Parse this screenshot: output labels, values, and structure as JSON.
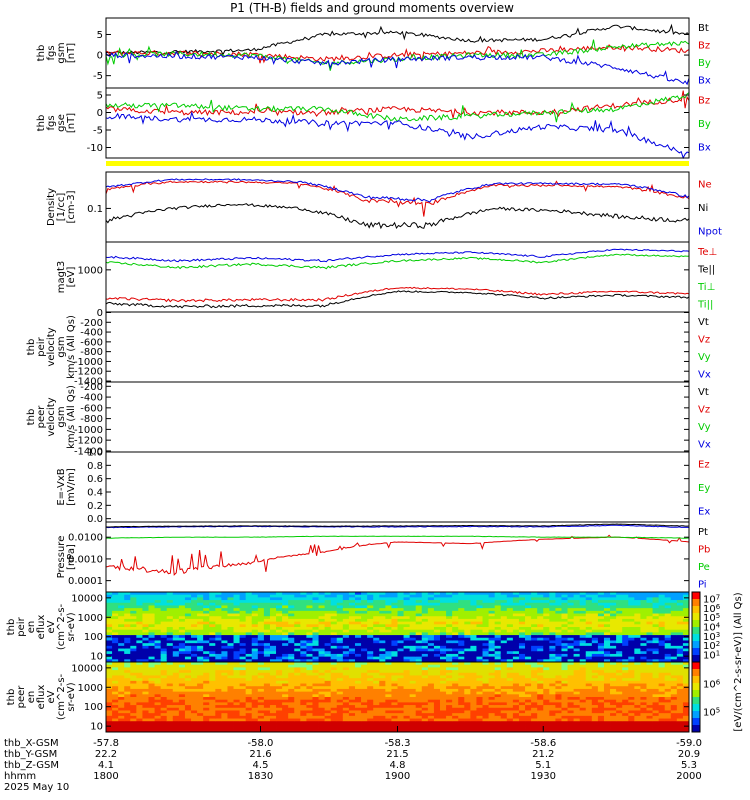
{
  "title": "P1 (TH-B) fields and ground moments overview",
  "colors": {
    "black": "#000000",
    "red": "#e00000",
    "green": "#00cc00",
    "blue": "#0000e0",
    "yellow": "#ffff00"
  },
  "panels": [
    {
      "id": "fgs-bt",
      "ylabel": [
        "thb",
        "fgs",
        "gsm",
        "[nT]"
      ],
      "ticks": [
        {
          "v": 5,
          "t": "5"
        },
        {
          "v": 0,
          "t": "0"
        },
        {
          "v": -5,
          "t": "-5"
        }
      ],
      "legend": [
        {
          "text": "Bt",
          "color": "black"
        },
        {
          "text": "Bz",
          "color": "red"
        },
        {
          "text": "By",
          "color": "green"
        },
        {
          "text": "Bx",
          "color": "blue"
        }
      ]
    },
    {
      "id": "fgs-b",
      "ylabel": [
        "thb",
        "fgs",
        "gse",
        "[nT]"
      ],
      "ticks": [
        {
          "v": 5,
          "t": "5"
        },
        {
          "v": 0,
          "t": "0"
        },
        {
          "v": -5,
          "t": "-5"
        },
        {
          "v": -10,
          "t": "-10"
        }
      ],
      "legend": [
        {
          "text": "Bz",
          "color": "red"
        },
        {
          "text": "By",
          "color": "green"
        },
        {
          "text": "Bx",
          "color": "blue"
        }
      ]
    },
    {
      "id": "density",
      "ylabel": [
        "Density",
        "[1/cc]",
        "[cm-3]"
      ],
      "ticks": [
        {
          "v": 0.1,
          "t": "0.1"
        }
      ],
      "legend": [
        {
          "text": "Ne",
          "color": "red"
        },
        {
          "text": "Ni",
          "color": "black"
        },
        {
          "text": "Npot",
          "color": "blue"
        }
      ]
    },
    {
      "id": "temperature",
      "ylabel": [
        "magt3",
        "[eV]"
      ],
      "ticks": [
        {
          "v": 1000,
          "t": "1000"
        }
      ],
      "legend": [
        {
          "text": "Te⊥",
          "color": "red"
        },
        {
          "text": "Te||",
          "color": "black"
        },
        {
          "text": "Ti⊥",
          "color": "green"
        },
        {
          "text": "Ti||",
          "color": "green"
        }
      ]
    },
    {
      "id": "peir-velocity",
      "ylabel": [
        "thb",
        "peir",
        "velocity",
        "gsm",
        "km/s (All Qs)"
      ],
      "ticks": [
        {
          "v": 0,
          "t": "0"
        },
        {
          "v": -200,
          "t": "-200"
        },
        {
          "v": -400,
          "t": "-400"
        },
        {
          "v": -600,
          "t": "-600"
        },
        {
          "v": -800,
          "t": "-800"
        },
        {
          "v": -1000,
          "t": "-1000"
        },
        {
          "v": -1200,
          "t": "-1200"
        },
        {
          "v": -1400,
          "t": "-1400"
        }
      ],
      "legend": [
        {
          "text": "Vt",
          "color": "black"
        },
        {
          "text": "Vz",
          "color": "red"
        },
        {
          "text": "Vy",
          "color": "green"
        },
        {
          "text": "Vx",
          "color": "blue"
        }
      ]
    },
    {
      "id": "peer-velocity",
      "ylabel": [
        "thb",
        "peer",
        "velocity",
        "gsm",
        "km/s (All Qs)"
      ],
      "ticks": [
        {
          "v": -200,
          "t": "-200"
        },
        {
          "v": -400,
          "t": "-400"
        },
        {
          "v": -600,
          "t": "-600"
        },
        {
          "v": -800,
          "t": "-800"
        },
        {
          "v": -1000,
          "t": "-1000"
        },
        {
          "v": -1200,
          "t": "-1200"
        },
        {
          "v": -1400,
          "t": "-1400"
        }
      ],
      "legend": [
        {
          "text": "Vt",
          "color": "black"
        },
        {
          "text": "Vz",
          "color": "red"
        },
        {
          "text": "Vy",
          "color": "green"
        },
        {
          "text": "Vx",
          "color": "blue"
        }
      ]
    },
    {
      "id": "efield",
      "ylabel": [
        "E=-VxB",
        "[mV/m]"
      ],
      "ticks": [
        {
          "v": 1.0,
          "t": "1.0"
        },
        {
          "v": 0.8,
          "t": "0.8"
        },
        {
          "v": 0.6,
          "t": "0.6"
        },
        {
          "v": 0.4,
          "t": "0.4"
        },
        {
          "v": 0.2,
          "t": "0.2"
        },
        {
          "v": 0.0,
          "t": "0.0"
        }
      ],
      "legend": [
        {
          "text": "Ez",
          "color": "red"
        },
        {
          "text": "Ey",
          "color": "green"
        },
        {
          "text": "Ex",
          "color": "blue"
        }
      ]
    },
    {
      "id": "pressure",
      "ylabel": [
        "Pressure",
        "[nPa]"
      ],
      "ticks": [
        {
          "v": 0.01,
          "t": "0.0100"
        },
        {
          "v": 0.001,
          "t": "0.0010"
        },
        {
          "v": 0.0001,
          "t": "0.0001"
        }
      ],
      "legend": [
        {
          "text": "Pt",
          "color": "black"
        },
        {
          "text": "Pb",
          "color": "red"
        },
        {
          "text": "Pe",
          "color": "green"
        },
        {
          "text": "Pi",
          "color": "blue"
        }
      ]
    },
    {
      "id": "peir-eflux",
      "ylabel": [
        "thb",
        "peir",
        "en",
        "eflux",
        "eV",
        "(cm^2-s-",
        "sr-eV)"
      ],
      "ticks": [
        {
          "v": 10000,
          "t": "10000"
        },
        {
          "v": 1000,
          "t": "1000"
        },
        {
          "v": 100,
          "t": "100"
        },
        {
          "v": 10,
          "t": "10"
        }
      ]
    },
    {
      "id": "peer-eflux",
      "ylabel": [
        "thb",
        "peer",
        "en",
        "eflux",
        "eV",
        "(cm^2-s-",
        "sr-eV)"
      ],
      "ticks": [
        {
          "v": 10000,
          "t": "10000"
        },
        {
          "v": 1000,
          "t": "1000"
        },
        {
          "v": 100,
          "t": "100"
        },
        {
          "v": 10,
          "t": "10"
        }
      ]
    }
  ],
  "colorbar": {
    "label": "[eV/(cm^2-s-sr-eV)] (All Qs)",
    "upper_ticks": [
      "10^7",
      "10^6",
      "10^5",
      "10^4",
      "10^3",
      "10^2",
      "10^1"
    ],
    "lower_ticks": [
      "10^6",
      "10^5"
    ]
  },
  "xaxis": {
    "rows": [
      {
        "label": "thb_X-GSM",
        "values": [
          "-57.8",
          "-58.0",
          "-58.3",
          "-58.6",
          "-59.0"
        ]
      },
      {
        "label": "thb_Y-GSM",
        "values": [
          "22.2",
          "21.6",
          "21.5",
          "21.2",
          "20.9"
        ]
      },
      {
        "label": "thb_Z-GSM",
        "values": [
          "4.1",
          "4.5",
          "4.8",
          "5.1",
          "5.3"
        ]
      },
      {
        "label": "hhmm",
        "values": [
          "1800",
          "1830",
          "1900",
          "1930",
          "2000"
        ]
      }
    ],
    "date": "2025 May 10"
  },
  "chart_data": {
    "type": "line",
    "title": "P1 (TH-B) fields and ground moments overview",
    "x": [
      "1800",
      "1830",
      "1900",
      "1930",
      "2000"
    ],
    "series": [
      {
        "name": "Bt",
        "values": [
          1,
          1,
          4,
          3,
          6
        ]
      },
      {
        "name": "Bz",
        "values": [
          1,
          0,
          0,
          0,
          2
        ]
      },
      {
        "name": "By",
        "values": [
          0,
          0,
          -1,
          0,
          2
        ]
      },
      {
        "name": "Bx",
        "values": [
          0,
          -1,
          -1,
          0,
          -6
        ]
      },
      {
        "name": "Ne",
        "values": [
          0.25,
          0.28,
          0.15,
          0.25,
          0.25
        ]
      },
      {
        "name": "Ni",
        "values": [
          0.06,
          0.1,
          0.05,
          0.1,
          0.06
        ]
      },
      {
        "name": "Npot",
        "values": [
          0.25,
          0.3,
          0.15,
          0.27,
          0.27
        ]
      },
      {
        "name": "Pt",
        "values": [
          0.03,
          0.03,
          0.03,
          0.03,
          0.03
        ]
      },
      {
        "name": "Pb",
        "values": [
          0.0003,
          0.0003,
          0.003,
          0.008,
          0.005
        ]
      },
      {
        "name": "Pe",
        "values": [
          0.009,
          0.01,
          0.011,
          0.011,
          0.01
        ]
      },
      {
        "name": "Pi",
        "values": [
          0.03,
          0.03,
          0.032,
          0.03,
          0.03
        ]
      }
    ],
    "spectrogram_energy_range": [
      5,
      20000
    ],
    "grid": false
  }
}
